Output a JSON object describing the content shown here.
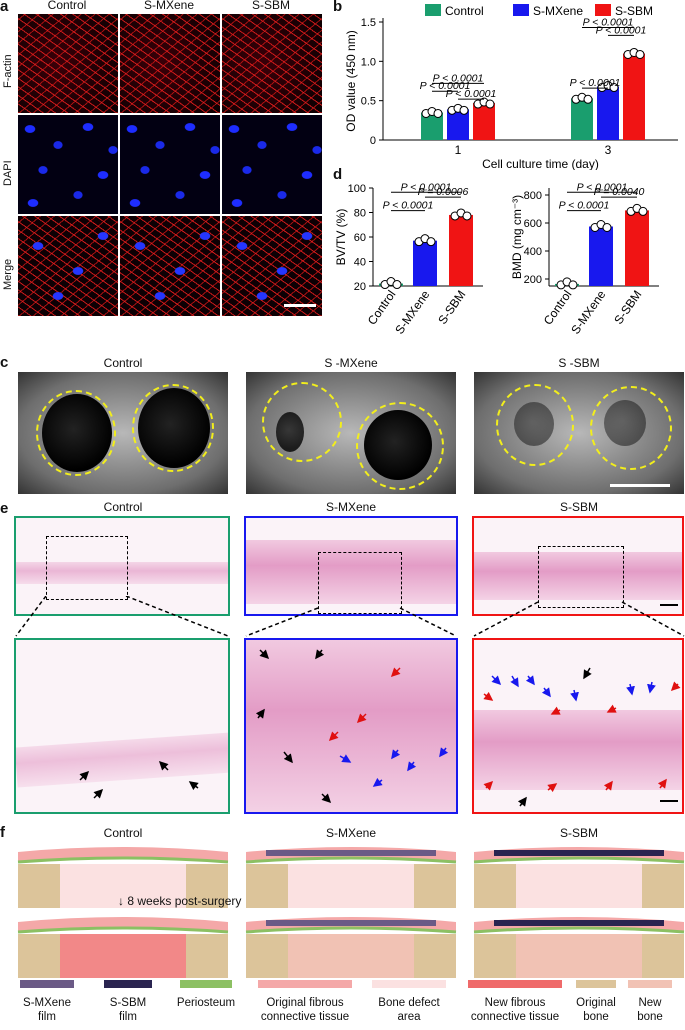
{
  "panels": {
    "a": "a",
    "b": "b",
    "c": "c",
    "d": "d",
    "e": "e",
    "f": "f"
  },
  "groups": [
    "Control",
    "S-MXene",
    "S-SBM"
  ],
  "panel_a": {
    "rows": [
      "F-actin",
      "DAPI",
      "Merge"
    ]
  },
  "panel_c": {
    "titles": [
      "Control",
      "S -MXene",
      "S -SBM"
    ]
  },
  "panel_e": {
    "titles": [
      "Control",
      "S-MXene",
      "S-SBM"
    ]
  },
  "panel_f": {
    "titles": [
      "Control",
      "S-MXene",
      "S-SBM"
    ],
    "timepoint": "8 weeks post-surgery",
    "legend": [
      {
        "line1": "S-MXene",
        "line2": "film",
        "color": "#6b5a86"
      },
      {
        "line1": "S-SBM",
        "line2": "film",
        "color": "#2a2450"
      },
      {
        "line1": "Periosteum",
        "line2": "",
        "color": "#8cc063"
      },
      {
        "line1": "Original fibrous",
        "line2": "connective tissue",
        "color": "#f4a8a8"
      },
      {
        "line1": "Bone defect",
        "line2": "area",
        "color": "#fbe1e1"
      },
      {
        "line1": "New fibrous",
        "line2": "connective tissue",
        "color": "#ef6a6a"
      },
      {
        "line1": "Original",
        "line2": "bone",
        "color": "#dcc49a"
      },
      {
        "line1": "New",
        "line2": "bone",
        "color": "#f1c2b4"
      }
    ]
  },
  "chart_data": [
    {
      "type": "bar",
      "panel": "b",
      "categories": [
        "1",
        "3"
      ],
      "xlabel": "Cell culture time (day)",
      "ylabel": "OD value (450 nm)",
      "ylim": [
        0,
        1.5
      ],
      "yticks": [
        "0",
        "0.5",
        "1.0",
        "1.5"
      ],
      "legend_position": "top",
      "series": [
        {
          "name": "Control",
          "color": "#1a9e6e",
          "values": [
            0.35,
            0.53
          ]
        },
        {
          "name": "S-MXene",
          "color": "#1818ee",
          "values": [
            0.39,
            0.68
          ]
        },
        {
          "name": "S-SBM",
          "color": "#f01414",
          "values": [
            0.47,
            1.1
          ]
        }
      ],
      "annotations": [
        "P < 0.0001",
        "P < 0.0001",
        "P < 0.0001",
        "P < 0.0001",
        "P < 0.0001",
        "P < 0.0001"
      ]
    },
    {
      "type": "bar",
      "panel": "d",
      "categories": [
        "Control",
        "S-MXene",
        "S-SBM"
      ],
      "ylabel": "BV/TV (%)",
      "ylim": [
        20,
        100
      ],
      "yticks": [
        "20",
        "40",
        "60",
        "80",
        "100"
      ],
      "colors": [
        "#1a9e6e",
        "#1818ee",
        "#f01414"
      ],
      "values": [
        22,
        57,
        78
      ],
      "annotations": [
        "P < 0.0001",
        "P = 0.0006",
        "P < 0.0001"
      ]
    },
    {
      "type": "bar",
      "panel": "d",
      "categories": [
        "Control",
        "S-MXene",
        "S-SBM"
      ],
      "ylabel": "BMD (mg cm⁻³)",
      "ylim": [
        150,
        850
      ],
      "yticks": [
        "200",
        "400",
        "600",
        "800"
      ],
      "colors": [
        "#1a9e6e",
        "#1818ee",
        "#f01414"
      ],
      "values": [
        165,
        575,
        690
      ],
      "annotations": [
        "P < 0.0001",
        "P = 0.0040",
        "P < 0.0001"
      ]
    }
  ]
}
